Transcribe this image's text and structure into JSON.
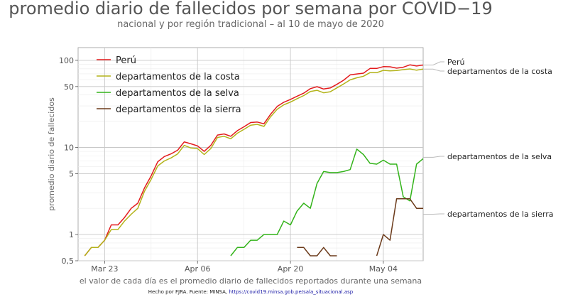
{
  "chart_data": {
    "type": "line",
    "title": "promedio diario de fallecidos por semana por COVID−19",
    "subtitle": "nacional y por región tradicional – al 10 de mayo de 2020",
    "xlabel": "el valor de cada día es el promedio diario de fallecidos reportados durante una semana",
    "ylabel": "promedio diario de fallecidos",
    "y_scale": "log",
    "ylim": [
      0.5,
      140
    ],
    "xlim": [
      "2020-03-19",
      "2020-05-10"
    ],
    "x_ticks": [
      {
        "date": "2020-03-23",
        "label": "Mar 23"
      },
      {
        "date": "2020-04-06",
        "label": "Apr 06"
      },
      {
        "date": "2020-04-20",
        "label": "Apr 20"
      },
      {
        "date": "2020-05-04",
        "label": "May 04"
      }
    ],
    "y_ticks": [
      {
        "value": 0.5,
        "label": "0,5"
      },
      {
        "value": 1,
        "label": "1"
      },
      {
        "value": 5,
        "label": "5"
      },
      {
        "value": 10,
        "label": "10"
      },
      {
        "value": 50,
        "label": "50"
      },
      {
        "value": 100,
        "label": "100"
      }
    ],
    "grid": true,
    "legend_position": "top-left",
    "series": [
      {
        "name": "Perú",
        "color": "#e31a1c",
        "x_start": "2020-03-20",
        "values": [
          0.57,
          0.71,
          0.71,
          0.86,
          1.29,
          1.29,
          1.57,
          2.0,
          2.29,
          3.43,
          4.71,
          6.86,
          7.86,
          8.43,
          9.29,
          11.57,
          11.0,
          10.43,
          9.0,
          10.57,
          13.86,
          14.29,
          13.43,
          15.57,
          17.29,
          19.29,
          19.57,
          18.71,
          24.0,
          29.57,
          33.0,
          35.57,
          38.71,
          42.0,
          47.29,
          49.86,
          46.86,
          48.14,
          53.0,
          59.0,
          68.0,
          69.71,
          71.14,
          80.71,
          80.71,
          84.57,
          84.29,
          81.29,
          83.43,
          88.71,
          86.14,
          88.43
        ]
      },
      {
        "name": "departamentos de la costa",
        "color": "#b3b31a",
        "x_start": "2020-03-20",
        "values": [
          0.57,
          0.71,
          0.71,
          0.86,
          1.14,
          1.14,
          1.43,
          1.71,
          2.0,
          3.14,
          4.29,
          6.14,
          7.0,
          7.57,
          8.43,
          10.57,
          9.86,
          9.71,
          8.29,
          9.71,
          13.0,
          13.43,
          12.57,
          14.57,
          16.14,
          18.0,
          18.43,
          17.43,
          22.43,
          27.43,
          30.86,
          33.14,
          36.29,
          39.43,
          43.86,
          45.29,
          42.43,
          43.57,
          48.29,
          53.43,
          59.71,
          63.0,
          65.71,
          72.29,
          72.14,
          76.71,
          75.71,
          76.43,
          78.14,
          79.71,
          77.0,
          79.29
        ]
      },
      {
        "name": "departamentos de la selva",
        "color": "#33b31a",
        "x_start": "2020-04-06",
        "values": [
          0.57,
          0.0,
          0.0,
          0.0,
          0.0,
          0.57,
          0.71,
          0.71,
          0.86,
          0.86,
          1.0,
          1.0,
          1.0,
          1.43,
          1.29,
          1.86,
          2.29,
          2.0,
          3.86,
          5.29,
          5.14,
          5.14,
          5.29,
          5.57,
          9.57,
          8.29,
          6.57,
          6.43,
          7.14,
          6.43,
          6.43,
          2.71,
          2.43,
          6.43,
          7.43,
          7.71
        ]
      },
      {
        "name": "departamentos de la sierra",
        "color": "#6b3a1a",
        "x_start": "2020-04-21",
        "values": [
          0.71,
          0.71,
          0.57,
          0.57,
          0.71,
          0.57,
          0.57,
          0.0,
          0.0,
          0.0,
          0.0,
          0.0,
          0.57,
          1.0,
          0.86,
          2.57,
          2.57,
          2.57,
          2.0,
          2.0,
          1.71
        ]
      }
    ],
    "end_labels": [
      "Perú",
      "departamentos de la costa",
      "departamentos de la selva",
      "departamentos de la sierra"
    ]
  },
  "caption": {
    "prefix": "Hecho por FJRA. Fuente: MINSA, ",
    "link": "https://covid19.minsa.gob.pe/sala_situacional.asp"
  }
}
